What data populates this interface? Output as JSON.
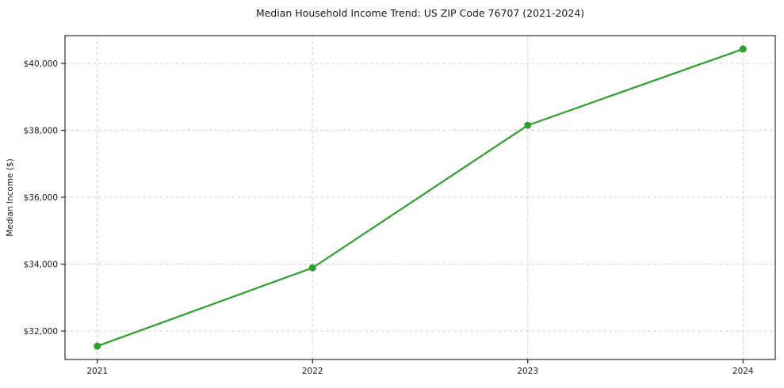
{
  "chart_data": {
    "type": "line",
    "title": "Median Household Income Trend: US ZIP Code 76707 (2021-2024)",
    "xlabel": "",
    "ylabel": "Median Income ($)",
    "x": [
      2021,
      2022,
      2023,
      2024
    ],
    "xtick_labels": [
      "2021",
      "2022",
      "2023",
      "2024"
    ],
    "series": [
      {
        "values": [
          31550,
          33890,
          38150,
          40430
        ],
        "color": "#2ca02c",
        "marker": "circle",
        "marker_diameter": 9,
        "line_width": 2.2
      }
    ],
    "yticks": [
      32000,
      34000,
      36000,
      38000,
      40000
    ],
    "ytick_labels": [
      "$32,000",
      "$34,000",
      "$36,000",
      "$38,000",
      "$40,000"
    ],
    "xlim": [
      2020.85,
      2024.15
    ],
    "ylim": [
      31150,
      40830
    ],
    "grid": true,
    "grid_style": "dashed",
    "grid_color": "#cccccc",
    "axis_color": "#000000",
    "text_color": "#1a1a1a",
    "background": "#ffffff",
    "legend_position": "none"
  }
}
